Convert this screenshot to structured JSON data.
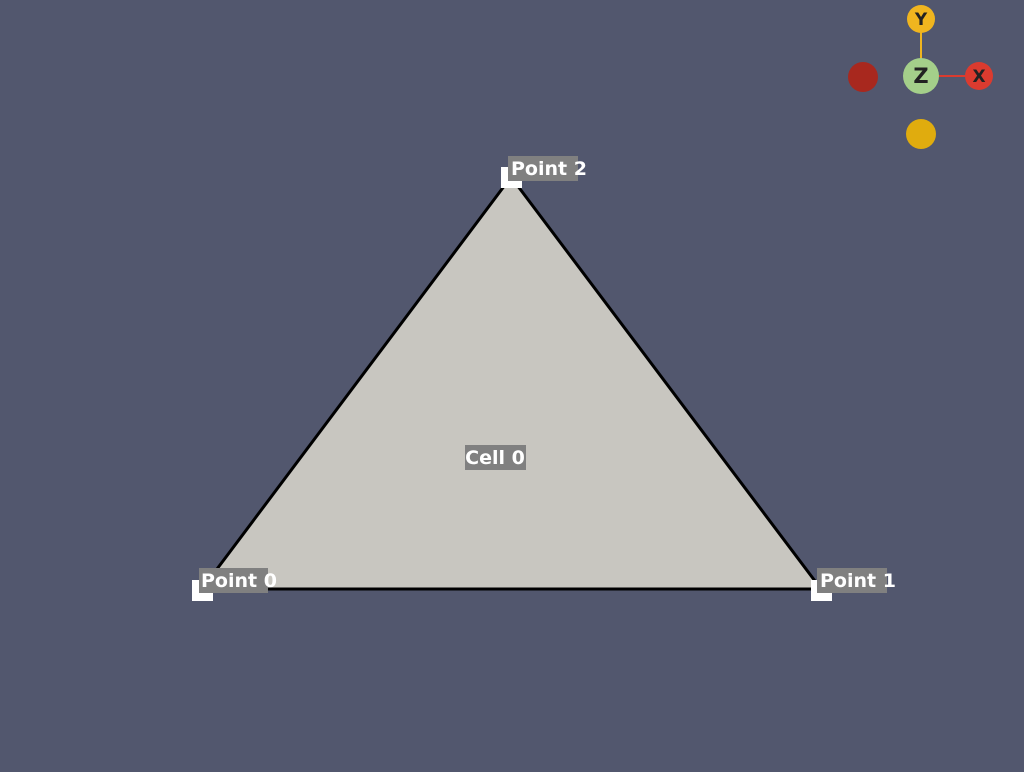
{
  "scene": {
    "background_color": "#52576e",
    "cell": {
      "label": "Cell 0",
      "fill_color": "#c8c6c0",
      "edge_color": "#000000"
    },
    "points": [
      {
        "label": "Point 0"
      },
      {
        "label": "Point 1"
      },
      {
        "label": "Point 2"
      }
    ],
    "label_box_color": "#808080",
    "label_text_color": "#ffffff"
  },
  "orientation_axes": {
    "x": {
      "label": "X",
      "color": "#db3b2f"
    },
    "y": {
      "label": "Y",
      "color": "#f0b51f"
    },
    "z": {
      "label": "Z",
      "color": "#a4cf8a"
    },
    "neg_x_color": "#a8281e",
    "neg_y_color": "#e0ac0e"
  }
}
